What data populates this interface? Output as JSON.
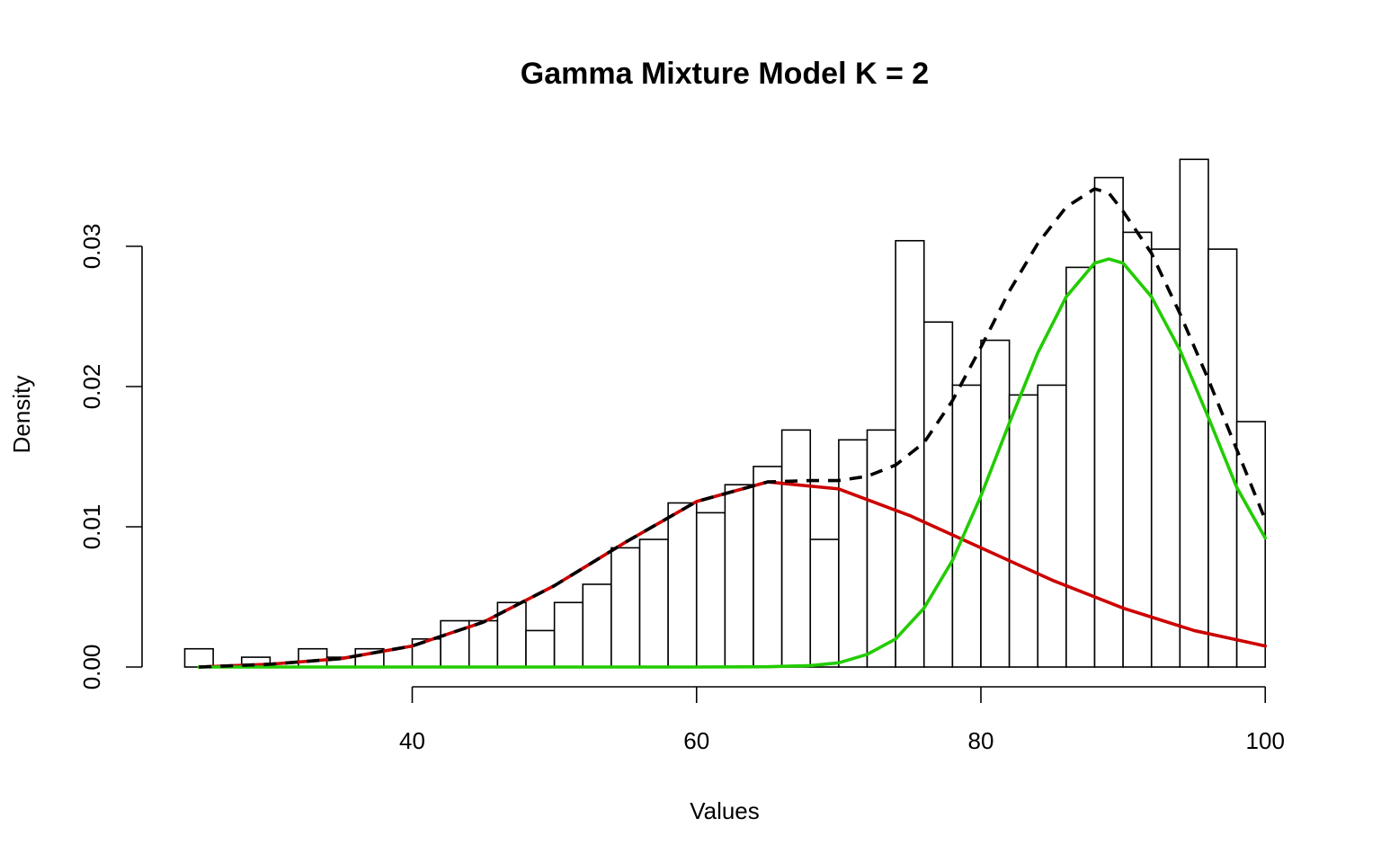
{
  "chart_data": {
    "type": "histogram",
    "title": "Gamma Mixture Model K = 2",
    "xlabel": "Values",
    "ylabel": "Density",
    "xlim": [
      25,
      100
    ],
    "ylim": [
      0,
      0.0345
    ],
    "x_ticks": [
      "40",
      "60",
      "80",
      "100"
    ],
    "x_tick_values": [
      40,
      60,
      80,
      100
    ],
    "y_ticks": [
      "0.00",
      "0.01",
      "0.02",
      "0.03"
    ],
    "y_tick_values": [
      0,
      0.01,
      0.02,
      0.03
    ],
    "grid": false,
    "bin_width": 2,
    "bins": [
      {
        "start": 24,
        "end": 26,
        "density": 0.0013
      },
      {
        "start": 26,
        "end": 28,
        "density": 0
      },
      {
        "start": 28,
        "end": 30,
        "density": 0.0007
      },
      {
        "start": 30,
        "end": 32,
        "density": 0
      },
      {
        "start": 32,
        "end": 34,
        "density": 0.0013
      },
      {
        "start": 34,
        "end": 36,
        "density": 0.0007
      },
      {
        "start": 36,
        "end": 38,
        "density": 0.0013
      },
      {
        "start": 38,
        "end": 40,
        "density": 0
      },
      {
        "start": 40,
        "end": 42,
        "density": 0.002
      },
      {
        "start": 42,
        "end": 44,
        "density": 0.0033
      },
      {
        "start": 44,
        "end": 46,
        "density": 0.0033
      },
      {
        "start": 46,
        "end": 48,
        "density": 0.0046
      },
      {
        "start": 48,
        "end": 50,
        "density": 0.0026
      },
      {
        "start": 50,
        "end": 52,
        "density": 0.0046
      },
      {
        "start": 52,
        "end": 54,
        "density": 0.0059
      },
      {
        "start": 54,
        "end": 56,
        "density": 0.0085
      },
      {
        "start": 56,
        "end": 58,
        "density": 0.0091
      },
      {
        "start": 58,
        "end": 60,
        "density": 0.0117
      },
      {
        "start": 60,
        "end": 62,
        "density": 0.011
      },
      {
        "start": 62,
        "end": 64,
        "density": 0.013
      },
      {
        "start": 64,
        "end": 66,
        "density": 0.0143
      },
      {
        "start": 66,
        "end": 68,
        "density": 0.0169
      },
      {
        "start": 68,
        "end": 70,
        "density": 0.0091
      },
      {
        "start": 70,
        "end": 72,
        "density": 0.0162
      },
      {
        "start": 72,
        "end": 74,
        "density": 0.0169
      },
      {
        "start": 74,
        "end": 76,
        "density": 0.0304
      },
      {
        "start": 76,
        "end": 78,
        "density": 0.0246
      },
      {
        "start": 78,
        "end": 80,
        "density": 0.0201
      },
      {
        "start": 80,
        "end": 82,
        "density": 0.0233
      },
      {
        "start": 82,
        "end": 84,
        "density": 0.0194
      },
      {
        "start": 84,
        "end": 86,
        "density": 0.0201
      },
      {
        "start": 86,
        "end": 88,
        "density": 0.0285
      },
      {
        "start": 88,
        "end": 90,
        "density": 0.0349
      },
      {
        "start": 90,
        "end": 92,
        "density": 0.031
      },
      {
        "start": 92,
        "end": 94,
        "density": 0.0298
      },
      {
        "start": 94,
        "end": 96,
        "density": 0.0362
      },
      {
        "start": 96,
        "end": 98,
        "density": 0.0298
      },
      {
        "start": 98,
        "end": 100,
        "density": 0.0175
      }
    ],
    "series": [
      {
        "color": "#cc0000",
        "style": "solid",
        "x": [
          25,
          30,
          35,
          40,
          45,
          50,
          55,
          60,
          65,
          70,
          75,
          80,
          85,
          90,
          95,
          100
        ],
        "y": [
          0,
          0.0002,
          0.0006,
          0.0015,
          0.0032,
          0.0058,
          0.0089,
          0.0118,
          0.0132,
          0.0127,
          0.0108,
          0.0085,
          0.0062,
          0.0042,
          0.0026,
          0.0015
        ]
      },
      {
        "color": "#22cc00",
        "style": "solid",
        "x": [
          25,
          60,
          65,
          68,
          70,
          72,
          74,
          76,
          78,
          80,
          82,
          84,
          86,
          88,
          89,
          90,
          92,
          94,
          96,
          98,
          100
        ],
        "y": [
          0,
          0,
          2e-05,
          0.0001,
          0.0003,
          0.0009,
          0.002,
          0.0042,
          0.0076,
          0.0122,
          0.0174,
          0.0224,
          0.0264,
          0.0288,
          0.0291,
          0.0288,
          0.0264,
          0.0226,
          0.0178,
          0.0128,
          0.0092
        ]
      },
      {
        "color": "#000000",
        "style": "dashed",
        "x": [
          25,
          30,
          35,
          40,
          45,
          50,
          55,
          60,
          65,
          68,
          70,
          72,
          74,
          76,
          78,
          80,
          82,
          84,
          86,
          88,
          89,
          90,
          92,
          94,
          96,
          98,
          100
        ],
        "y": [
          0,
          0.0002,
          0.0006,
          0.0015,
          0.0032,
          0.0058,
          0.0089,
          0.0118,
          0.0132,
          0.0133,
          0.0133,
          0.0136,
          0.0144,
          0.016,
          0.019,
          0.0228,
          0.0268,
          0.0302,
          0.0328,
          0.0341,
          0.0338,
          0.0325,
          0.0295,
          0.0252,
          0.0205,
          0.0155,
          0.0105
        ]
      }
    ]
  }
}
